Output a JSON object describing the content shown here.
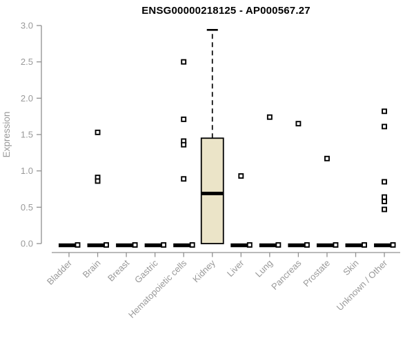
{
  "chart_data": {
    "type": "boxplot",
    "title": "ENSG00000218125 - AP000567.27",
    "ylabel": "Expression",
    "ylim": [
      0,
      3
    ],
    "yticks": [
      0.0,
      0.5,
      1.0,
      1.5,
      2.0,
      2.5,
      3.0
    ],
    "categories": [
      "Bladder",
      "Brain",
      "Breast",
      "Gastric",
      "Hematopoietic cells",
      "Kidney",
      "Liver",
      "Lung",
      "Pancreas",
      "Prostate",
      "Skin",
      "Unknown / Other"
    ],
    "boxes": [
      {
        "category": "Bladder",
        "q1": 0,
        "median": 0,
        "q3": 0,
        "whisker_low": 0,
        "whisker_high": 0,
        "outliers": [],
        "zero_marker": true
      },
      {
        "category": "Brain",
        "q1": 0,
        "median": 0,
        "q3": 0,
        "whisker_low": 0,
        "whisker_high": 0,
        "outliers": [
          1.53,
          0.91,
          0.86
        ],
        "zero_marker": true
      },
      {
        "category": "Breast",
        "q1": 0,
        "median": 0,
        "q3": 0,
        "whisker_low": 0,
        "whisker_high": 0,
        "outliers": [],
        "zero_marker": true
      },
      {
        "category": "Gastric",
        "q1": 0,
        "median": 0,
        "q3": 0,
        "whisker_low": 0,
        "whisker_high": 0,
        "outliers": [],
        "zero_marker": true
      },
      {
        "category": "Hematopoietic cells",
        "q1": 0,
        "median": 0,
        "q3": 0,
        "whisker_low": 0,
        "whisker_high": 0,
        "outliers": [
          2.5,
          1.71,
          1.41,
          1.36,
          0.89
        ],
        "zero_marker": true
      },
      {
        "category": "Kidney",
        "q1": 0,
        "median": 0.69,
        "q3": 1.45,
        "whisker_low": 0,
        "whisker_high": 2.94,
        "outliers": [],
        "zero_marker": false
      },
      {
        "category": "Liver",
        "q1": 0,
        "median": 0,
        "q3": 0,
        "whisker_low": 0,
        "whisker_high": 0,
        "outliers": [
          0.93
        ],
        "zero_marker": true
      },
      {
        "category": "Lung",
        "q1": 0,
        "median": 0,
        "q3": 0,
        "whisker_low": 0,
        "whisker_high": 0,
        "outliers": [
          1.74
        ],
        "zero_marker": true
      },
      {
        "category": "Pancreas",
        "q1": 0,
        "median": 0,
        "q3": 0,
        "whisker_low": 0,
        "whisker_high": 0,
        "outliers": [
          1.65
        ],
        "zero_marker": true
      },
      {
        "category": "Prostate",
        "q1": 0,
        "median": 0,
        "q3": 0,
        "whisker_low": 0,
        "whisker_high": 0,
        "outliers": [
          1.17
        ],
        "zero_marker": true
      },
      {
        "category": "Skin",
        "q1": 0,
        "median": 0,
        "q3": 0,
        "whisker_low": 0,
        "whisker_high": 0,
        "outliers": [],
        "zero_marker": true
      },
      {
        "category": "Unknown / Other",
        "q1": 0,
        "median": 0,
        "q3": 0,
        "whisker_low": 0,
        "whisker_high": 0,
        "outliers": [
          1.82,
          1.61,
          0.85,
          0.64,
          0.58,
          0.47
        ],
        "zero_marker": true
      }
    ],
    "legend": "none",
    "grid": "off",
    "colors": {
      "box_fill": "#EBE4C8",
      "box_stroke": "#000000",
      "axis_line": "#909090",
      "tick_label": "#999999",
      "title_color": "#000000",
      "background": "#FFFFFF"
    }
  }
}
